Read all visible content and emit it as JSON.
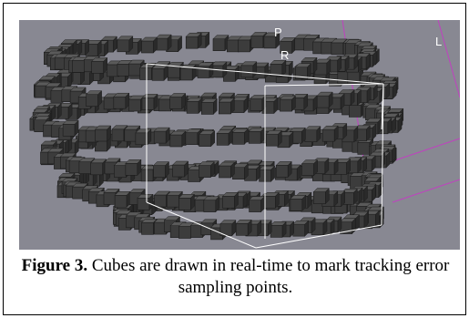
{
  "viewport": {
    "orientation_labels": {
      "posterior": "P",
      "right": "R",
      "left": "L"
    },
    "background_color": "#888892",
    "cube_color": "#3c3c3c",
    "bounding_box_color": "#ffffff",
    "axis_line_color": "#c040c0"
  },
  "caption": {
    "label": "Figure 3.",
    "text": "Cubes are drawn in real-time to mark tracking error sampling points."
  }
}
